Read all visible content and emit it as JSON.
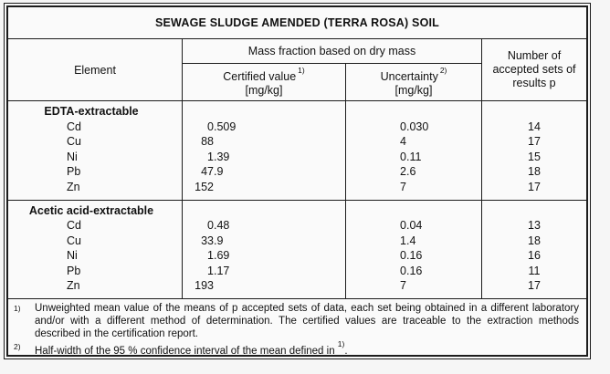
{
  "title": "SEWAGE SLUDGE AMENDED (TERRA ROSA) SOIL",
  "header": {
    "element_label": "Element",
    "mass_fraction_label": "Mass fraction based on dry mass",
    "certified_label": "Certified value",
    "certified_marker": "1)",
    "certified_unit": "[mg/kg]",
    "uncertainty_label": "Uncertainty",
    "uncertainty_marker": "2)",
    "uncertainty_unit": "[mg/kg]",
    "accepted_lines": [
      "Number of",
      "accepted sets of",
      "results p"
    ]
  },
  "sections": [
    {
      "name": "EDTA-extractable",
      "rows": [
        {
          "element": "Cd",
          "certified": "0.509",
          "uncertainty": "0.030",
          "p": "14"
        },
        {
          "element": "Cu",
          "certified": "88",
          "uncertainty": "4",
          "p": "17"
        },
        {
          "element": "Ni",
          "certified": "1.39",
          "uncertainty": "0.11",
          "p": "15"
        },
        {
          "element": "Pb",
          "certified": "47.9",
          "uncertainty": "2.6",
          "p": "18"
        },
        {
          "element": "Zn",
          "certified": "152",
          "uncertainty": "7",
          "p": "17"
        }
      ]
    },
    {
      "name": "Acetic acid-extractable",
      "rows": [
        {
          "element": "Cd",
          "certified": "0.48",
          "uncertainty": "0.04",
          "p": "13"
        },
        {
          "element": "Cu",
          "certified": "33.9",
          "uncertainty": "1.4",
          "p": "18"
        },
        {
          "element": "Ni",
          "certified": "1.69",
          "uncertainty": "0.16",
          "p": "16"
        },
        {
          "element": "Pb",
          "certified": "1.17",
          "uncertainty": "0.16",
          "p": "11"
        },
        {
          "element": "Zn",
          "certified": "193",
          "uncertainty": "7",
          "p": "17"
        }
      ]
    }
  ],
  "footnotes": [
    {
      "marker": "1)",
      "text": "Unweighted mean value of the means of p accepted sets of data, each set being obtained in a different laboratory and/or with a different method of determination. The certified values are traceable to the extraction methods described in the certification report."
    },
    {
      "marker": "2)",
      "text": "Half-width of the 95 % confidence interval of the mean defined in ",
      "tail_marker": "1)",
      "tail_text": "."
    }
  ],
  "colors": {
    "border": "#1c1c1c",
    "text": "#111111",
    "page_bg": "#f6f6f6",
    "table_bg": "#fafafa"
  }
}
